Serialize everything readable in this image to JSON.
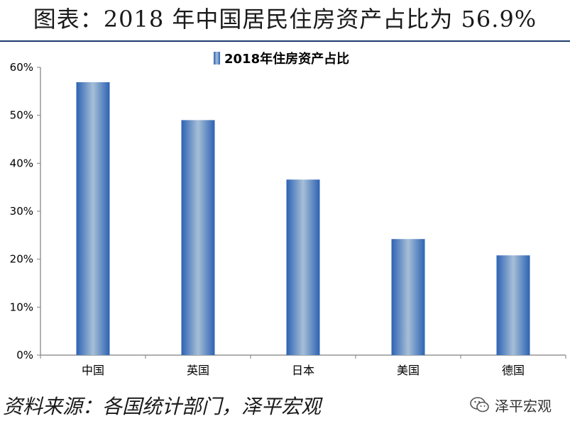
{
  "page": {
    "title": "图表：2018 年中国居民住房资产占比为 56.9%",
    "source": "资料来源：各国统计部门，泽平宏观",
    "watermark": "泽平宏观",
    "watermark_icon": "wechat-icon"
  },
  "chart_data": {
    "type": "bar",
    "categories": [
      "中国",
      "英国",
      "日本",
      "美国",
      "德国"
    ],
    "series": [
      {
        "name": "2018年住房资产占比",
        "values": [
          56.9,
          49.0,
          36.6,
          24.2,
          20.8
        ]
      }
    ],
    "ylim": [
      0,
      60
    ],
    "yticks": [
      0,
      10,
      20,
      30,
      40,
      50,
      60
    ],
    "ytick_labels": [
      "0%",
      "10%",
      "20%",
      "30%",
      "40%",
      "50%",
      "60%"
    ],
    "grid": false,
    "legend_position": "top-center",
    "colors": {
      "bar_edge": "#2d62b4",
      "bar_center": "#a6bfd7",
      "axis": "#7f7f7f"
    }
  }
}
